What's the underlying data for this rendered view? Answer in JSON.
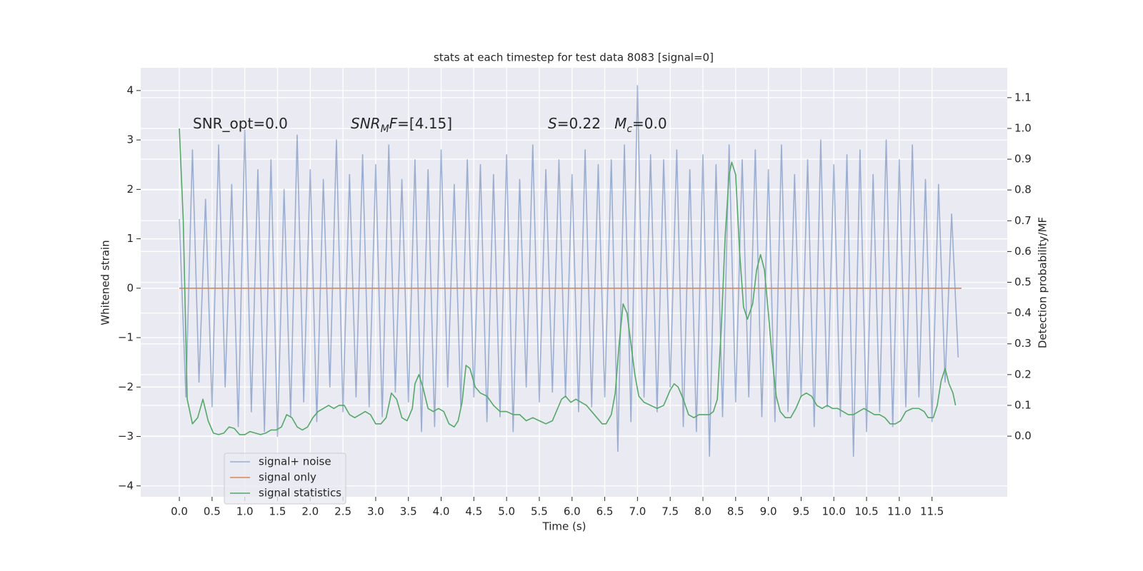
{
  "chart_data": {
    "type": "line",
    "title": "stats at each timestep for test data 8083 [signal=0]",
    "x_label": "Time (s)",
    "y_label": "Whitened strain",
    "y2_label": "Detection probability/MF",
    "xlim": [
      -0.59,
      12.65
    ],
    "ylim": [
      -4.22,
      4.46
    ],
    "y2lim": [
      -0.197,
      1.197
    ],
    "xticks": [
      {
        "value": 0,
        "label": "0.0"
      },
      0.5,
      {
        "value": 1,
        "label": "1.0"
      },
      1.5,
      {
        "value": 2,
        "label": "2.0"
      },
      2.5,
      {
        "value": 3,
        "label": "3.0"
      },
      3.5,
      {
        "value": 4,
        "label": "4.0"
      },
      4.5,
      {
        "value": 5,
        "label": "5.0"
      },
      5.5,
      {
        "value": 6,
        "label": "6.0"
      },
      6.5,
      {
        "value": 7,
        "label": "7.0"
      },
      7.5,
      {
        "value": 8,
        "label": "8.0"
      },
      8.5,
      {
        "value": 9,
        "label": "9.0"
      },
      9.5,
      {
        "value": 10,
        "label": "10.0"
      },
      10.5,
      {
        "value": 11,
        "label": "11.0"
      },
      11.5
    ],
    "yticks": [
      {
        "value": -4,
        "label": "−4"
      },
      {
        "value": -3,
        "label": "−3"
      },
      {
        "value": -2,
        "label": "−2"
      },
      {
        "value": -1,
        "label": "−1"
      },
      0,
      1,
      2,
      3,
      4
    ],
    "y2ticks": [
      {
        "value": 0,
        "label": "0.0"
      },
      0.1,
      0.2,
      0.3,
      0.4,
      0.5,
      0.6,
      0.7,
      0.8,
      0.9,
      {
        "value": 1,
        "label": "1.0"
      },
      1.1
    ],
    "grid": true,
    "legend": "lower left",
    "annotations": [
      [
        {
          "text": "SNR_opt=0.0"
        }
      ],
      [
        {
          "text": "SNR",
          "italic": true
        },
        {
          "text": "M",
          "italic": true,
          "sub": true
        },
        {
          "text": "F",
          "italic": true
        },
        {
          "text": "=[4.15]"
        }
      ],
      [
        {
          "text": "S",
          "italic": true
        },
        {
          "text": "=0.22   "
        },
        {
          "text": "M",
          "italic": true
        },
        {
          "text": "c",
          "italic": true,
          "sub": true
        },
        {
          "text": "=0.0"
        }
      ]
    ],
    "series": [
      {
        "name": "signal+ noise",
        "color": "#4c72b0",
        "alpha": 0.5,
        "x": [
          0.0,
          0.1,
          0.2,
          0.3,
          0.4,
          0.5,
          0.6,
          0.7,
          0.8,
          0.9,
          1.0,
          1.1,
          1.2,
          1.3,
          1.4,
          1.5,
          1.6,
          1.7,
          1.8,
          1.9,
          2.0,
          2.1,
          2.2,
          2.3,
          2.4,
          2.5,
          2.6,
          2.7,
          2.8,
          2.9,
          3.0,
          3.1,
          3.2,
          3.3,
          3.4,
          3.5,
          3.6,
          3.7,
          3.8,
          3.9,
          4.0,
          4.1,
          4.2,
          4.3,
          4.4,
          4.5,
          4.6,
          4.7,
          4.8,
          4.9,
          5.0,
          5.1,
          5.2,
          5.3,
          5.4,
          5.5,
          5.6,
          5.7,
          5.8,
          5.9,
          6.0,
          6.1,
          6.2,
          6.3,
          6.4,
          6.5,
          6.6,
          6.7,
          6.8,
          6.9,
          7.0,
          7.1,
          7.2,
          7.3,
          7.4,
          7.5,
          7.6,
          7.7,
          7.8,
          7.9,
          8.0,
          8.1,
          8.2,
          8.3,
          8.4,
          8.5,
          8.6,
          8.7,
          8.8,
          8.9,
          9.0,
          9.1,
          9.2,
          9.3,
          9.4,
          9.5,
          9.6,
          9.7,
          9.8,
          9.9,
          10.0,
          10.1,
          10.2,
          10.3,
          10.4,
          10.5,
          10.6,
          10.7,
          10.8,
          10.9,
          11.0,
          11.1,
          11.2,
          11.3,
          11.4,
          11.5,
          11.6,
          11.7,
          11.8,
          11.9
        ],
        "values": [
          1.4,
          -2.2,
          2.8,
          -1.9,
          1.8,
          -2.4,
          2.9,
          -2.0,
          2.1,
          -2.8,
          3.2,
          -2.5,
          2.4,
          -2.9,
          2.6,
          -3.0,
          2.0,
          -2.6,
          3.1,
          -2.3,
          2.4,
          -2.7,
          2.2,
          -2.0,
          3.0,
          -2.5,
          2.3,
          -2.2,
          2.7,
          -2.4,
          2.5,
          -2.6,
          2.9,
          -2.1,
          2.2,
          -2.3,
          2.6,
          -2.9,
          2.4,
          -2.8,
          2.8,
          -2.0,
          2.1,
          -2.4,
          2.6,
          -2.2,
          2.5,
          -2.7,
          2.3,
          -2.6,
          2.7,
          -2.9,
          2.2,
          -2.0,
          2.9,
          -2.3,
          2.4,
          -2.1,
          2.6,
          -2.2,
          2.3,
          -2.5,
          2.8,
          -2.4,
          2.5,
          -2.2,
          2.6,
          -3.3,
          2.9,
          -2.7,
          4.1,
          -2.2,
          2.7,
          -2.5,
          2.6,
          -2.0,
          2.8,
          -2.8,
          2.4,
          -2.9,
          2.7,
          -3.4,
          2.5,
          -2.6,
          2.9,
          -2.3,
          2.6,
          -2.2,
          2.8,
          -2.6,
          2.4,
          -2.7,
          2.9,
          -2.5,
          2.3,
          -2.2,
          2.6,
          -2.8,
          3.0,
          -2.4,
          2.5,
          -2.6,
          2.7,
          -3.4,
          2.8,
          -2.9,
          2.3,
          -2.5,
          3.0,
          -2.8,
          2.6,
          -2.4,
          2.9,
          -2.2,
          2.2,
          -2.7,
          2.1,
          -1.9,
          1.5,
          -1.4
        ]
      },
      {
        "name": "signal only",
        "color": "#dd8452",
        "alpha": 1,
        "x": [
          0.0,
          11.95
        ],
        "values": [
          0,
          0
        ]
      },
      {
        "name": "signal statistics",
        "color": "#55a868",
        "alpha": 1,
        "axis": "y2",
        "x": [
          0.0,
          0.06,
          0.12,
          0.2,
          0.28,
          0.36,
          0.44,
          0.52,
          0.6,
          0.68,
          0.76,
          0.84,
          0.92,
          1.0,
          1.08,
          1.16,
          1.24,
          1.32,
          1.4,
          1.48,
          1.56,
          1.64,
          1.72,
          1.8,
          1.88,
          1.96,
          2.04,
          2.12,
          2.2,
          2.28,
          2.36,
          2.44,
          2.52,
          2.6,
          2.68,
          2.76,
          2.84,
          2.92,
          3.0,
          3.08,
          3.16,
          3.24,
          3.32,
          3.4,
          3.48,
          3.56,
          3.6,
          3.66,
          3.72,
          3.8,
          3.88,
          3.96,
          4.04,
          4.12,
          4.2,
          4.26,
          4.32,
          4.38,
          4.44,
          4.52,
          4.6,
          4.7,
          4.8,
          4.9,
          5.0,
          5.1,
          5.2,
          5.3,
          5.4,
          5.5,
          5.6,
          5.7,
          5.76,
          5.84,
          5.9,
          5.98,
          6.06,
          6.14,
          6.22,
          6.3,
          6.38,
          6.46,
          6.52,
          6.6,
          6.66,
          6.72,
          6.78,
          6.84,
          6.9,
          6.96,
          7.02,
          7.1,
          7.2,
          7.3,
          7.4,
          7.5,
          7.56,
          7.62,
          7.7,
          7.78,
          7.86,
          7.94,
          8.02,
          8.1,
          8.16,
          8.22,
          8.28,
          8.34,
          8.4,
          8.44,
          8.5,
          8.56,
          8.62,
          8.68,
          8.76,
          8.82,
          8.88,
          8.94,
          9.0,
          9.06,
          9.12,
          9.18,
          9.26,
          9.34,
          9.42,
          9.5,
          9.58,
          9.66,
          9.74,
          9.82,
          9.9,
          9.98,
          10.06,
          10.14,
          10.22,
          10.3,
          10.38,
          10.46,
          10.54,
          10.62,
          10.7,
          10.78,
          10.86,
          10.94,
          11.02,
          11.1,
          11.2,
          11.3,
          11.38,
          11.44,
          11.52,
          11.58,
          11.64,
          11.7,
          11.76,
          11.82,
          11.86
        ],
        "values": [
          1.0,
          0.7,
          0.12,
          0.04,
          0.06,
          0.12,
          0.05,
          0.01,
          0.005,
          0.01,
          0.03,
          0.025,
          0.005,
          0.005,
          0.015,
          0.01,
          0.005,
          0.01,
          0.02,
          0.02,
          0.03,
          0.07,
          0.06,
          0.03,
          0.02,
          0.03,
          0.06,
          0.08,
          0.09,
          0.1,
          0.09,
          0.1,
          0.1,
          0.07,
          0.06,
          0.07,
          0.08,
          0.07,
          0.04,
          0.04,
          0.06,
          0.14,
          0.12,
          0.06,
          0.05,
          0.09,
          0.17,
          0.2,
          0.16,
          0.09,
          0.08,
          0.09,
          0.08,
          0.04,
          0.03,
          0.05,
          0.11,
          0.23,
          0.22,
          0.16,
          0.14,
          0.13,
          0.1,
          0.08,
          0.08,
          0.07,
          0.07,
          0.05,
          0.06,
          0.05,
          0.04,
          0.05,
          0.08,
          0.12,
          0.13,
          0.11,
          0.12,
          0.11,
          0.1,
          0.08,
          0.06,
          0.04,
          0.04,
          0.07,
          0.14,
          0.3,
          0.43,
          0.4,
          0.3,
          0.2,
          0.13,
          0.11,
          0.1,
          0.09,
          0.1,
          0.15,
          0.17,
          0.16,
          0.12,
          0.07,
          0.06,
          0.07,
          0.07,
          0.07,
          0.08,
          0.12,
          0.35,
          0.65,
          0.85,
          0.89,
          0.85,
          0.6,
          0.42,
          0.38,
          0.43,
          0.54,
          0.59,
          0.54,
          0.4,
          0.25,
          0.13,
          0.08,
          0.06,
          0.06,
          0.09,
          0.13,
          0.14,
          0.13,
          0.1,
          0.09,
          0.1,
          0.09,
          0.09,
          0.08,
          0.07,
          0.07,
          0.08,
          0.09,
          0.08,
          0.07,
          0.07,
          0.06,
          0.04,
          0.04,
          0.05,
          0.08,
          0.09,
          0.09,
          0.08,
          0.06,
          0.06,
          0.1,
          0.18,
          0.22,
          0.17,
          0.14,
          0.1
        ]
      }
    ]
  }
}
